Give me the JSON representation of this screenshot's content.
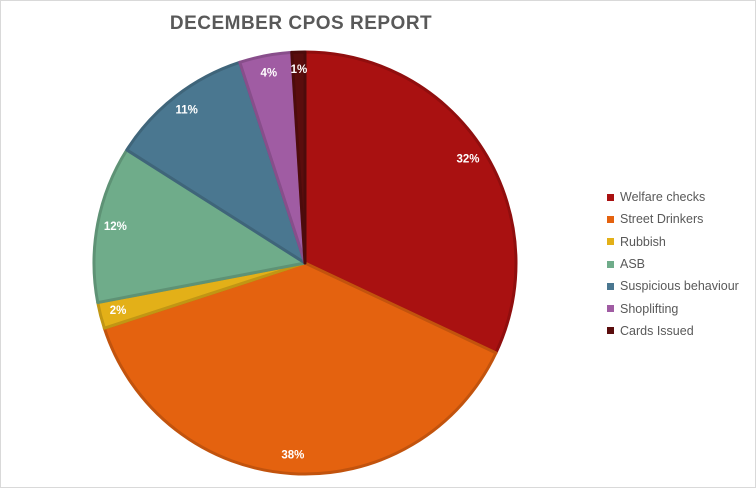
{
  "chart_data": {
    "type": "pie",
    "title": "DECEMBER CPOS REPORT",
    "slices": [
      {
        "label": "Welfare checks",
        "value": 32,
        "display": "32%",
        "color": "#a91111"
      },
      {
        "label": "Street Drinkers",
        "value": 38,
        "display": "38%",
        "color": "#e4620f"
      },
      {
        "label": "Rubbish",
        "value": 2,
        "display": "2%",
        "color": "#e3b018"
      },
      {
        "label": "ASB",
        "value": 12,
        "display": "12%",
        "color": "#6fac8a"
      },
      {
        "label": "Suspicious behaviour",
        "value": 11,
        "display": "11%",
        "color": "#4a7790"
      },
      {
        "label": "Shoplifting",
        "value": 4,
        "display": "4%",
        "color": "#a05ca3"
      },
      {
        "label": "Cards Issued",
        "value": 1,
        "display": "1%",
        "color": "#5a0d0d"
      }
    ],
    "legend_position": "right"
  }
}
